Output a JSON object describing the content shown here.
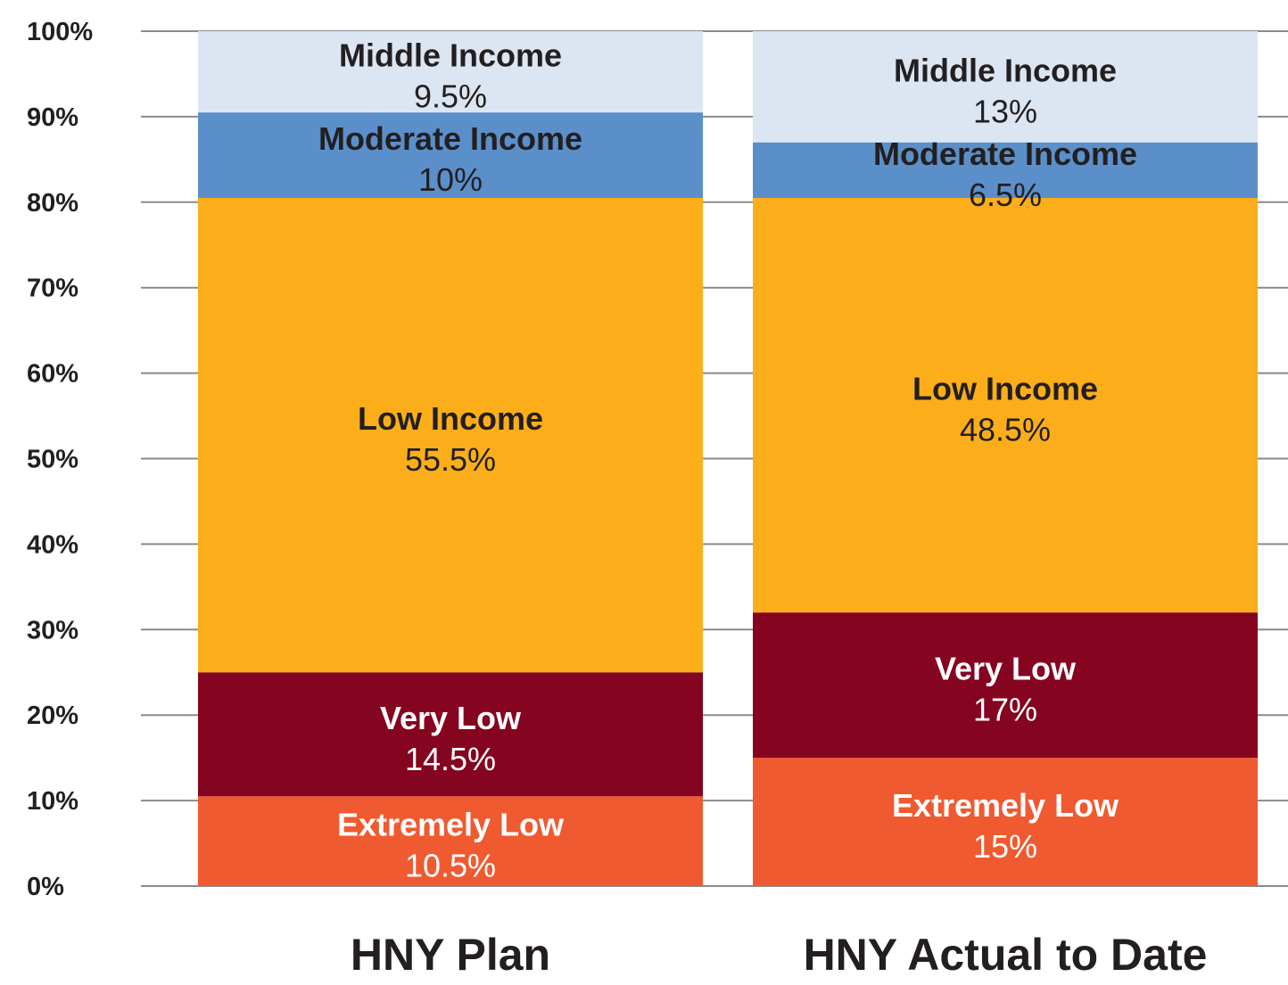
{
  "chart_data": {
    "type": "bar",
    "stacked": true,
    "orientation": "vertical",
    "title": "",
    "xlabel": "",
    "ylabel": "",
    "ylim": [
      0,
      100
    ],
    "y_ticks": [
      "0%",
      "10%",
      "20%",
      "30%",
      "40%",
      "50%",
      "60%",
      "70%",
      "80%",
      "90%",
      "100%"
    ],
    "grid": true,
    "legend": "none",
    "categories": [
      "HNY Plan",
      "HNY Actual to Date"
    ],
    "series": [
      {
        "name": "Extremely Low",
        "values": [
          10.5,
          15
        ],
        "labels": [
          "10.5%",
          "15%"
        ],
        "color": "#f05a30",
        "text_color": "#ffffff"
      },
      {
        "name": "Very Low",
        "values": [
          14.5,
          17
        ],
        "labels": [
          "14.5%",
          "17%"
        ],
        "color": "#850420",
        "text_color": "#ffffff"
      },
      {
        "name": "Low Income",
        "values": [
          55.5,
          48.5
        ],
        "labels": [
          "55.5%",
          "48.5%"
        ],
        "color": "#fbae19",
        "text_color": "#231f20"
      },
      {
        "name": "Moderate Income",
        "values": [
          10,
          6.5
        ],
        "labels": [
          "10%",
          "6.5%"
        ],
        "color": "#5b8fca",
        "text_color": "#231f20"
      },
      {
        "name": "Middle Income",
        "values": [
          9.5,
          13
        ],
        "labels": [
          "9.5%",
          "13%"
        ],
        "color": "#dce6f2",
        "text_color": "#231f20"
      }
    ]
  }
}
